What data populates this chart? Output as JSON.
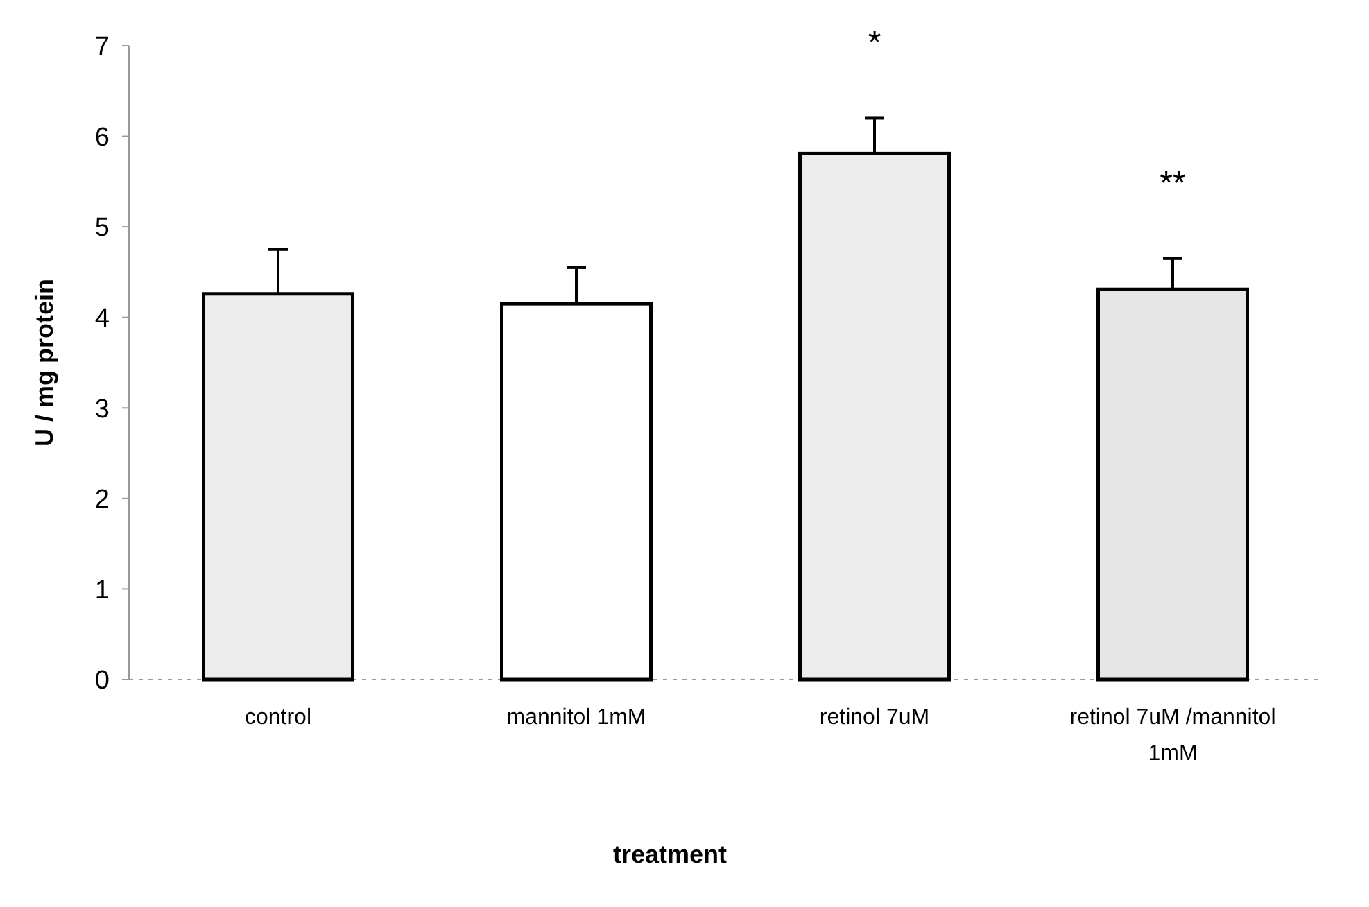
{
  "chart_data": {
    "type": "bar",
    "xlabel": "treatment",
    "ylabel": "U / mg protein",
    "categories": [
      "control",
      "mannitol 1mM",
      "retinol 7uM",
      "retinol 7uM /mannitol 1mM"
    ],
    "values": [
      4.26,
      4.15,
      5.81,
      4.31
    ],
    "colors": [
      "#ececec",
      "#ffffff",
      "#ececec",
      "#e6e6e6"
    ],
    "errors": [
      [
        4.26,
        4.75
      ],
      [
        4.15,
        4.55
      ],
      [
        5.81,
        6.2
      ],
      [
        4.31,
        4.65
      ]
    ],
    "ylim": [
      0,
      7
    ],
    "yticks": [
      0,
      1,
      2,
      3,
      4,
      5,
      6,
      7
    ],
    "grid": false,
    "annotations": [
      "*",
      "**"
    ]
  }
}
